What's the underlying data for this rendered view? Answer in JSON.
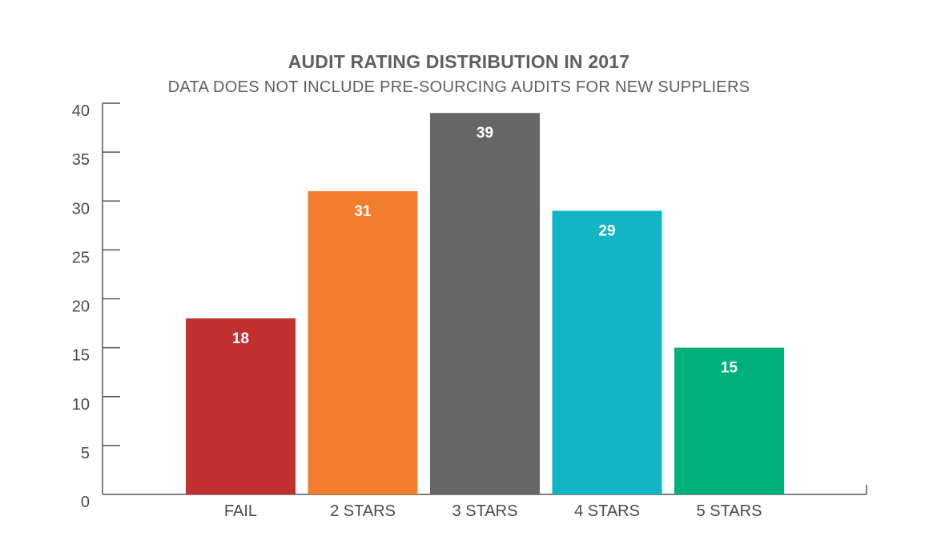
{
  "chart_data": {
    "type": "bar",
    "title": "AUDIT RATING DISTRIBUTION IN 2017",
    "subtitle": "DATA DOES NOT INCLUDE PRE-SOURCING AUDITS FOR NEW SUPPLIERS",
    "xlabel": "",
    "ylabel": "",
    "categories": [
      "FAIL",
      "2 STARS",
      "3 STARS",
      "4 STARS",
      "5 STARS"
    ],
    "values": [
      18,
      31,
      39,
      29,
      15
    ],
    "colors": [
      "#c23030",
      "#f27e2d",
      "#666666",
      "#12b5c4",
      "#00b07a"
    ],
    "ylim": [
      0,
      40
    ],
    "yticks": [
      "0",
      "5",
      "10",
      "15",
      "20",
      "25",
      "30",
      "35",
      "40"
    ],
    "data_labels": true,
    "grid": false,
    "legend": "none"
  }
}
